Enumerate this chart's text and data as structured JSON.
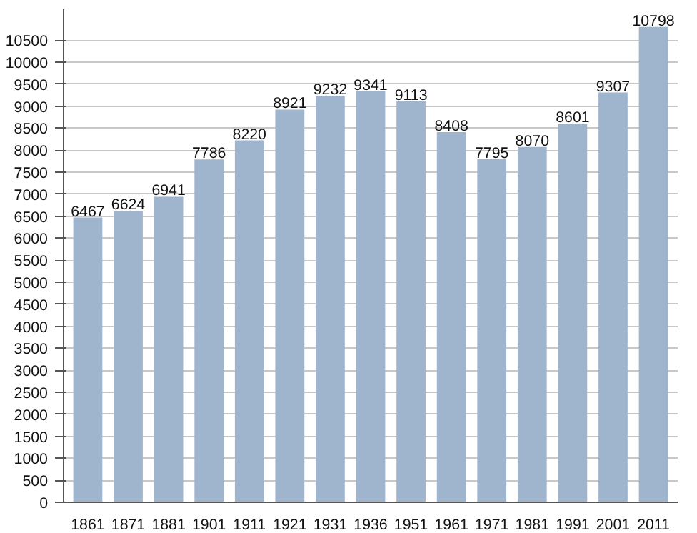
{
  "chart_data": {
    "type": "bar",
    "categories": [
      "1861",
      "1871",
      "1881",
      "1901",
      "1911",
      "1921",
      "1931",
      "1936",
      "1951",
      "1961",
      "1971",
      "1981",
      "1991",
      "2001",
      "2011"
    ],
    "values": [
      6467,
      6624,
      6941,
      7786,
      8220,
      8921,
      9232,
      9341,
      9113,
      8408,
      7795,
      8070,
      8601,
      9307,
      10798
    ],
    "color": "#9fb4cd",
    "ylim": [
      0,
      11200
    ],
    "yticks": [
      0,
      500,
      1000,
      1500,
      2000,
      2500,
      3000,
      3500,
      4000,
      4500,
      5000,
      5500,
      6000,
      6500,
      7000,
      7500,
      8000,
      8500,
      9000,
      9500,
      10000,
      10500
    ],
    "grid": "y",
    "data_labels": true
  }
}
